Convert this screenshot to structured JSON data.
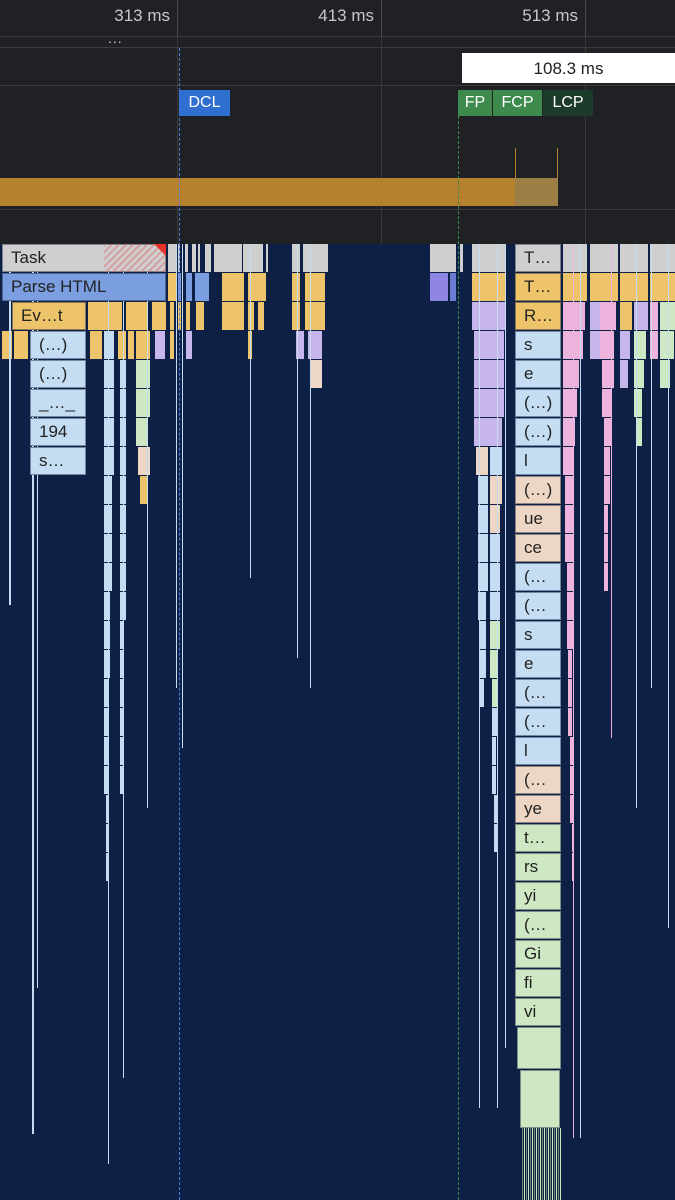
{
  "ruler": {
    "ticks": [
      "313 ms",
      "413 ms",
      "513 ms"
    ]
  },
  "overview": {
    "ellipsis": "...",
    "range_label": "108.3 ms",
    "markers": {
      "dcl": "DCL",
      "fp": "FP",
      "fcp": "FCP",
      "lcp": "LCP"
    }
  },
  "flame": {
    "task": "Task",
    "parse_html": "Parse HTML",
    "ev": "Ev…t",
    "left_col": [
      "(…)",
      "(…)",
      "_…_",
      "194",
      "s…"
    ],
    "right_col": [
      "T…",
      "T…",
      "R…",
      "s",
      "e",
      "(…)",
      "(…)",
      "l",
      "(…)",
      "ue",
      "ce",
      "(…",
      "(…",
      "s",
      "e",
      "(…",
      "(…",
      "l",
      "(…",
      "ye",
      "t…",
      "rs",
      "yi",
      "(…",
      "Gi",
      "fi",
      "vi"
    ]
  },
  "colors": {
    "task": "#cfcfcf",
    "parse_html": "#7a9ee0",
    "script": "#eec46a",
    "function": "#c4ddf2",
    "dcl": "#2f6fd0",
    "paint": "#3e8a4c",
    "lcp": "#1d3b2a",
    "cpu": "#b5812f",
    "purple": "#c6b6ec",
    "pink": "#ecb3dc",
    "green": "#cfe8c4",
    "peach": "#edd7c4"
  }
}
